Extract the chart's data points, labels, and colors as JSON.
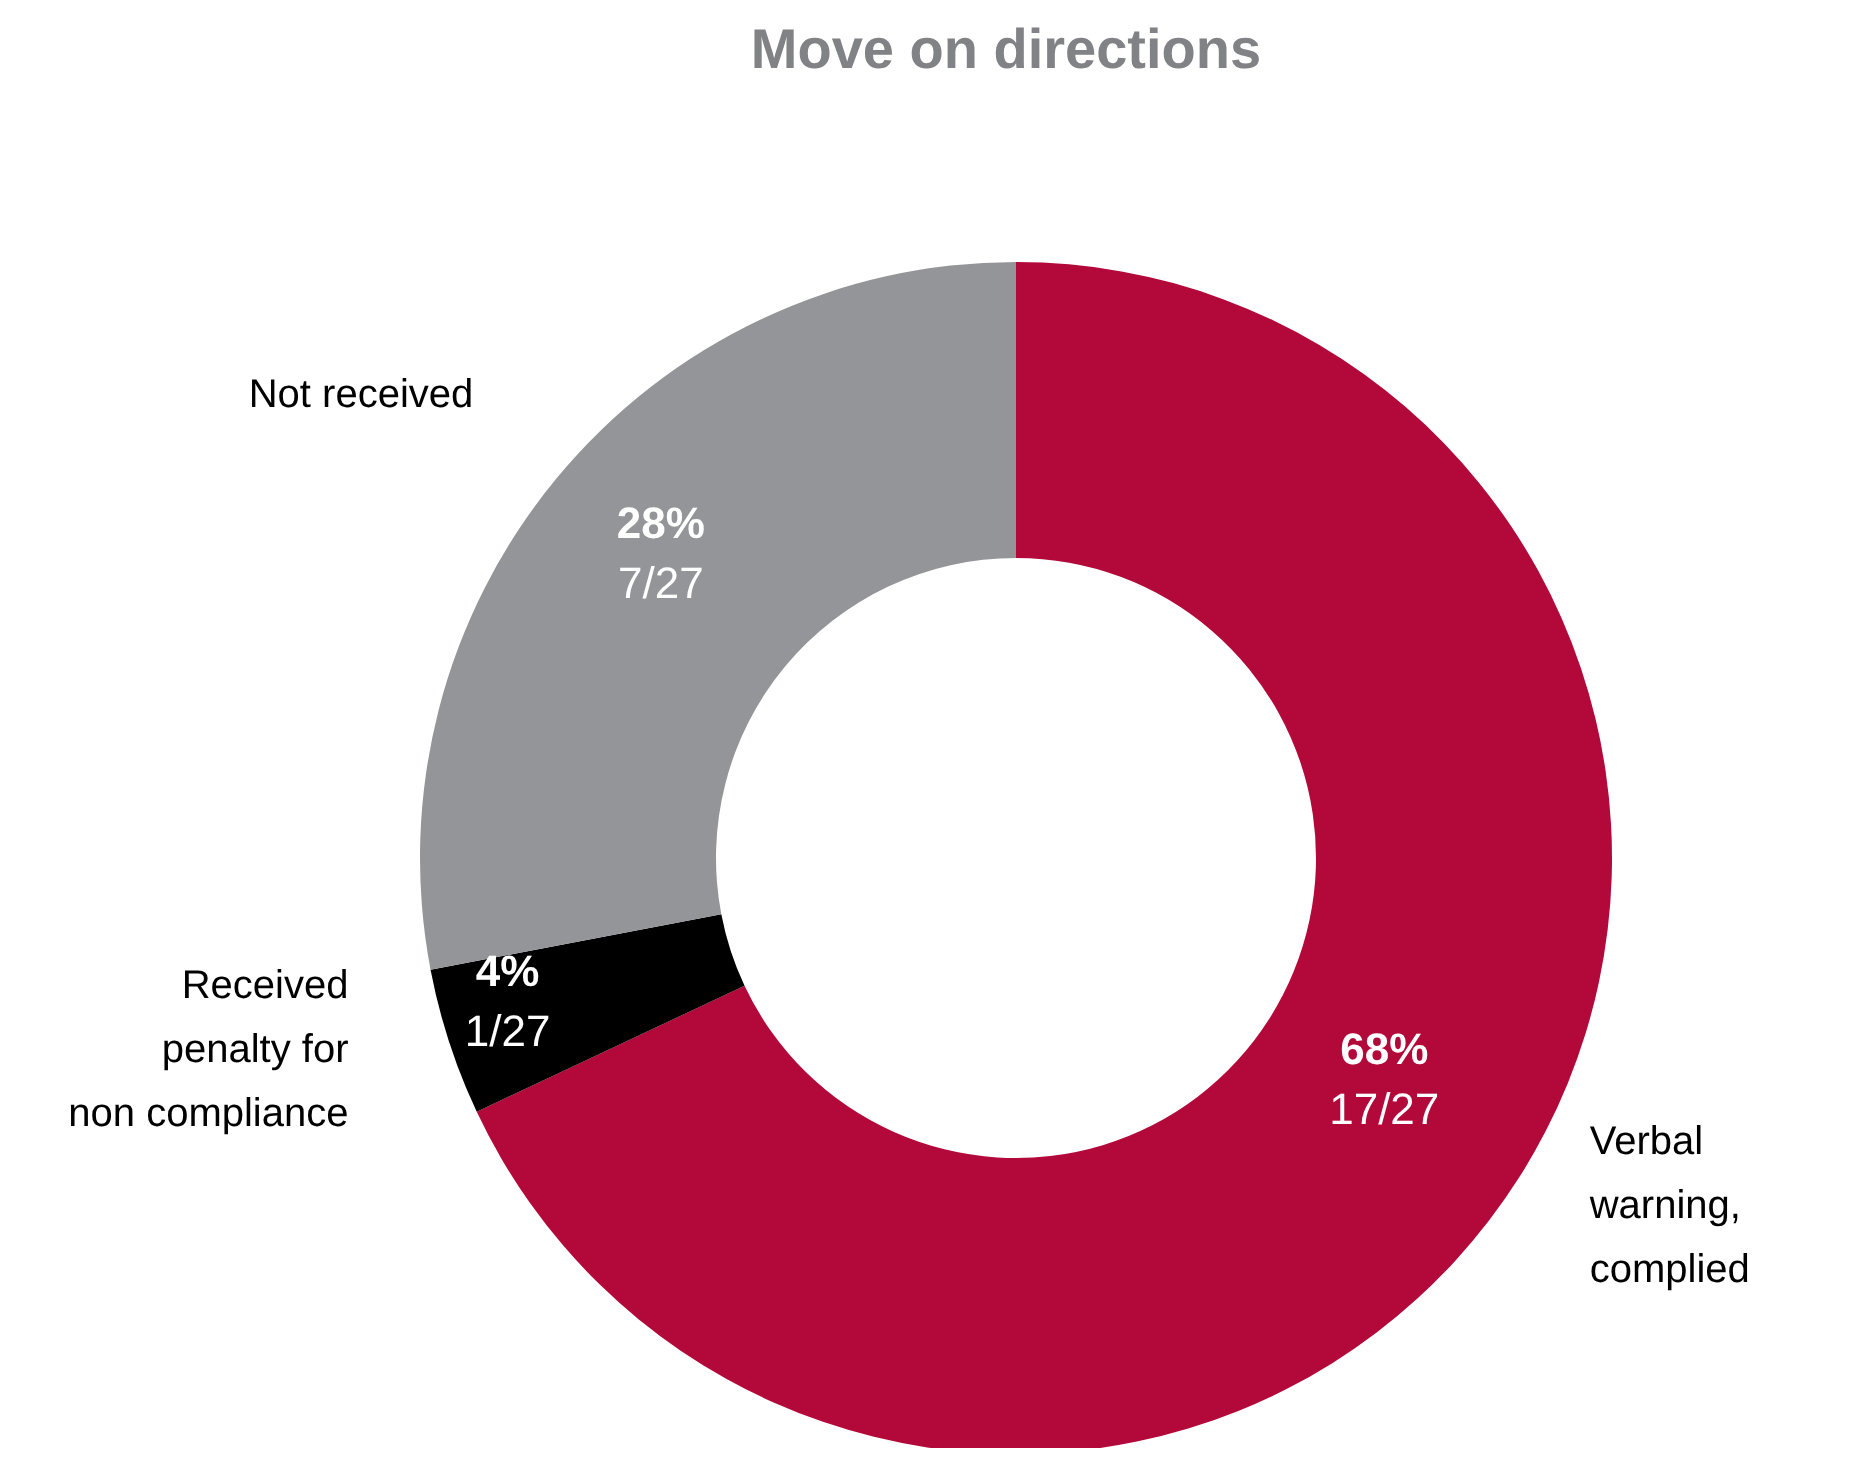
{
  "chart_data": {
    "type": "donut",
    "title": "Move on directions",
    "categories": [
      "Verbal warning, complied",
      "Received penalty for non compliance",
      "Not received"
    ],
    "values": [
      68,
      4,
      28
    ],
    "colors": [
      "#b3093a",
      "#000000",
      "#939598"
    ],
    "value_labels": [
      "68% 17/27",
      "4% 1/27",
      "28% 7/27"
    ]
  }
}
